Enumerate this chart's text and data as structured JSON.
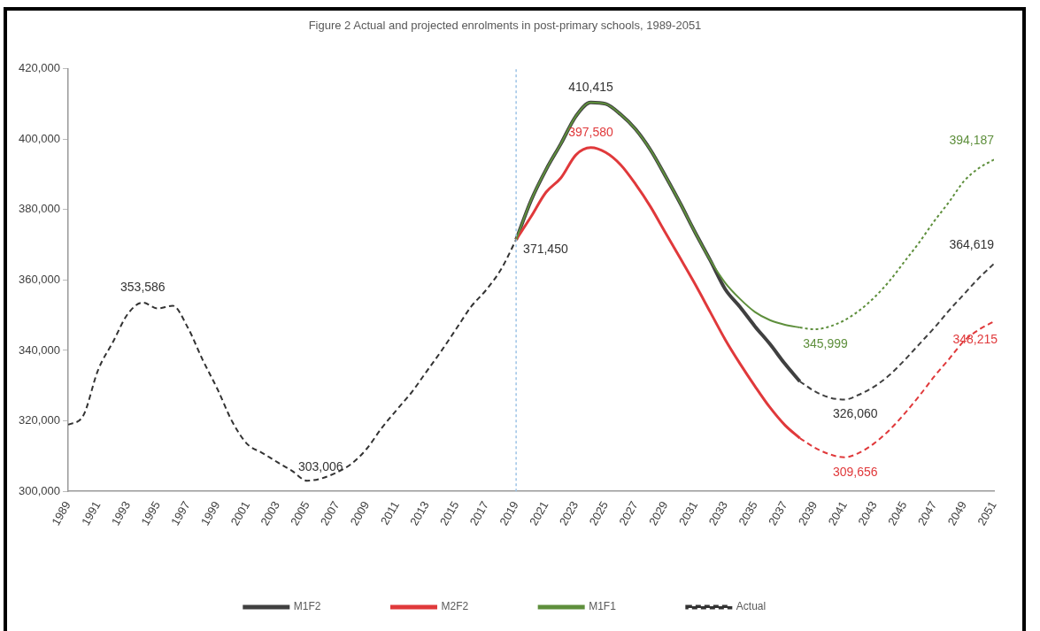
{
  "chart_data": {
    "type": "line",
    "title": "Figure 2 Actual and projected enrolments in post-primary schools, 1989-2051",
    "xlim": [
      1989,
      2051
    ],
    "xticks": [
      1989,
      1991,
      1993,
      1995,
      1997,
      1999,
      2001,
      2003,
      2005,
      2007,
      2009,
      2011,
      2013,
      2015,
      2017,
      2019,
      2021,
      2023,
      2025,
      2027,
      2029,
      2031,
      2033,
      2035,
      2037,
      2039,
      2041,
      2043,
      2045,
      2047,
      2049,
      2051
    ],
    "ylim": [
      300000,
      420000
    ],
    "yticks": [
      {
        "value": 300000,
        "label": "300,000"
      },
      {
        "value": 320000,
        "label": "320,000"
      },
      {
        "value": 340000,
        "label": "340,000"
      },
      {
        "value": 360000,
        "label": "360,000"
      },
      {
        "value": 380000,
        "label": "380,000"
      },
      {
        "value": 400000,
        "label": "400,000"
      },
      {
        "value": 420000,
        "label": "420,000"
      }
    ],
    "grid": false,
    "legend": "bottom",
    "marker": "none",
    "series": [
      {
        "name": "M1F2",
        "color": "#404040",
        "line_style": "solid",
        "x": [
          2019,
          2020,
          2021,
          2022,
          2023,
          2024,
          2025,
          2026,
          2027,
          2028,
          2029,
          2030,
          2031,
          2032,
          2033,
          2034,
          2035,
          2036,
          2037,
          2038
        ],
        "values": [
          371450,
          382600,
          391300,
          398700,
          406500,
          410415,
          410000,
          407000,
          402800,
          396900,
          389500,
          381700,
          373400,
          365600,
          357400,
          352300,
          346800,
          341800,
          336200,
          331200
        ]
      },
      {
        "name": "M2F2",
        "color": "#e0393b",
        "line_style": "solid",
        "x": [
          2019,
          2020,
          2021,
          2022,
          2023,
          2024,
          2025,
          2026,
          2027,
          2028,
          2029,
          2030,
          2031,
          2032,
          2033,
          2034,
          2035,
          2036,
          2037,
          2038
        ],
        "values": [
          371450,
          378000,
          384900,
          389000,
          395500,
          397580,
          396200,
          392700,
          387200,
          380800,
          373400,
          366100,
          358700,
          350900,
          343100,
          336200,
          329800,
          323800,
          318800,
          315100
        ]
      },
      {
        "name": "M1F1",
        "color": "#5e8f3c",
        "line_style": "solid",
        "x": [
          2019,
          2020,
          2021,
          2022,
          2023,
          2024,
          2025,
          2026,
          2027,
          2028,
          2029,
          2030,
          2031,
          2032,
          2033,
          2034,
          2035,
          2036,
          2037,
          2038
        ],
        "values": [
          371450,
          382600,
          391300,
          398700,
          406500,
          410415,
          410000,
          407000,
          402800,
          396900,
          389500,
          381700,
          373400,
          365600,
          359200,
          354600,
          350900,
          348600,
          347300,
          346500
        ]
      },
      {
        "name": "Actual",
        "color": "#333333",
        "line_style": "dashed",
        "x": [
          1989,
          1990,
          1991,
          1992,
          1993,
          1994,
          1995,
          1996,
          1997,
          1998,
          1999,
          2000,
          2001,
          2002,
          2003,
          2004,
          2005,
          2006,
          2007,
          2008,
          2009,
          2010,
          2011,
          2012,
          2013,
          2014,
          2015,
          2016,
          2017,
          2018,
          2019
        ],
        "values": [
          318900,
          321400,
          334400,
          342400,
          350400,
          353586,
          351900,
          352700,
          346600,
          337400,
          329000,
          319700,
          313400,
          310900,
          308300,
          305800,
          303006,
          303700,
          305400,
          307900,
          312100,
          318000,
          323100,
          328100,
          334000,
          339900,
          346200,
          352500,
          357200,
          363100,
          371450
        ]
      },
      {
        "color": "#404040",
        "line_style": "dashed",
        "x": [
          2038,
          2039,
          2040,
          2041,
          2042,
          2043,
          2044,
          2045,
          2046,
          2047,
          2048,
          2049,
          2050,
          2051
        ],
        "values": [
          331200,
          328400,
          326600,
          326060,
          327500,
          329800,
          333000,
          337200,
          341800,
          346400,
          351400,
          356000,
          360600,
          364619
        ]
      },
      {
        "color": "#e0393b",
        "line_style": "dashed",
        "x": [
          2038,
          2039,
          2040,
          2041,
          2042,
          2043,
          2044,
          2045,
          2046,
          2047,
          2048,
          2049,
          2050,
          2051
        ],
        "values": [
          315100,
          312400,
          310500,
          309656,
          311000,
          313700,
          317400,
          322000,
          327100,
          332600,
          337600,
          342700,
          345900,
          348215
        ]
      },
      {
        "color": "#5e8f3c",
        "line_style": "dotted",
        "x": [
          2038,
          2039,
          2040,
          2041,
          2042,
          2043,
          2044,
          2045,
          2046,
          2047,
          2048,
          2049,
          2050,
          2051
        ],
        "values": [
          346500,
          345999,
          346800,
          348600,
          351400,
          355100,
          359700,
          365200,
          370700,
          376700,
          382200,
          388100,
          391800,
          394187
        ]
      }
    ],
    "ref_lines": [
      {
        "axis": "x",
        "value": 2019,
        "color": "#9dc3e6",
        "line_style": "dotted"
      }
    ],
    "annotations": [
      {
        "text": "353,586",
        "x": 1994,
        "y": 353586
      },
      {
        "text": "303,006",
        "x": 2005,
        "y": 303006
      },
      {
        "text": "371,450",
        "x": 2019,
        "y": 371450
      },
      {
        "text": "410,415",
        "x": 2024,
        "y": 410415
      },
      {
        "text": "397,580",
        "x": 2024,
        "y": 397580
      },
      {
        "text": "345,999",
        "x": 2039,
        "y": 345999
      },
      {
        "text": "326,060",
        "x": 2041,
        "y": 326060
      },
      {
        "text": "309,656",
        "x": 2041,
        "y": 309656
      },
      {
        "text": "394,187",
        "x": 2051,
        "y": 394187
      },
      {
        "text": "364,619",
        "x": 2051,
        "y": 364619
      },
      {
        "text": "348,215",
        "x": 2051,
        "y": 348215
      }
    ]
  }
}
